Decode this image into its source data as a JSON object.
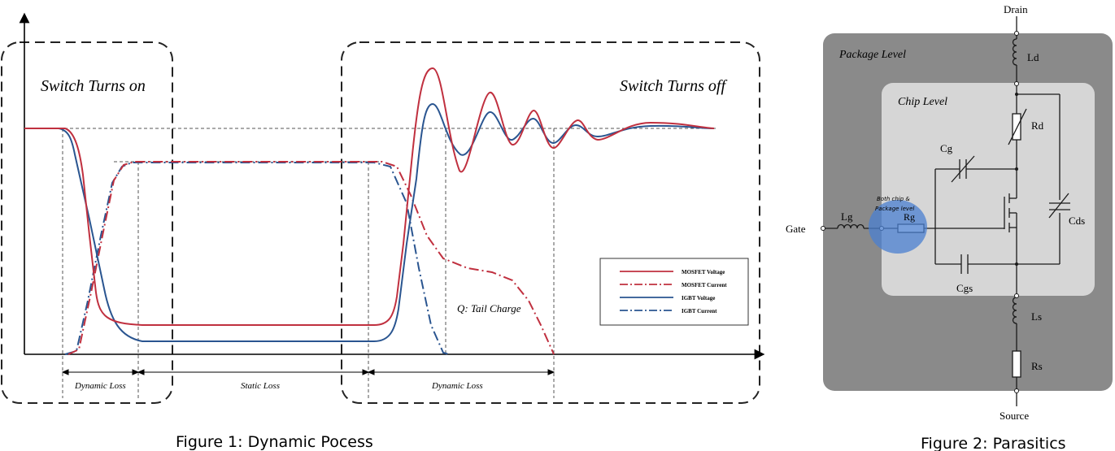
{
  "figure1": {
    "caption": "Figure 1: Dynamic Pocess",
    "turn_on_label": "Switch Turns on",
    "turn_off_label": "Switch Turns off",
    "tail_charge_label": "Q: Tail Charge",
    "segments": [
      "Dynamic Loss",
      "Static Loss",
      "Dynamic Loss"
    ],
    "legend": [
      {
        "name": "MOSFET Voltage",
        "color": "#c0303f",
        "dash": "solid"
      },
      {
        "name": "MOSFET Current",
        "color": "#c0303f",
        "dash": "dashdot"
      },
      {
        "name": "IGBT Voltage",
        "color": "#2a5590",
        "dash": "solid"
      },
      {
        "name": "IGBT Current",
        "color": "#2a5590",
        "dash": "dashdot"
      }
    ]
  },
  "figure2": {
    "caption": "Figure 2: Parasitics",
    "package_label": "Package Level",
    "chip_label": "Chip Level",
    "annotation": [
      "Both chip &",
      "Package level"
    ],
    "labels": {
      "drain": "Drain",
      "source": "Source",
      "gate": "Gate",
      "ld": "Ld",
      "rd": "Rd",
      "cg": "Cg",
      "cds": "Cds",
      "lg": "Lg",
      "rg": "Rg",
      "cgs": "Cgs",
      "ls": "Ls",
      "rs": "Rs"
    },
    "colors": {
      "package_bg": "#8a8a8a",
      "chip_bg": "#d6d6d6",
      "highlight": "#4a7fd0"
    }
  }
}
